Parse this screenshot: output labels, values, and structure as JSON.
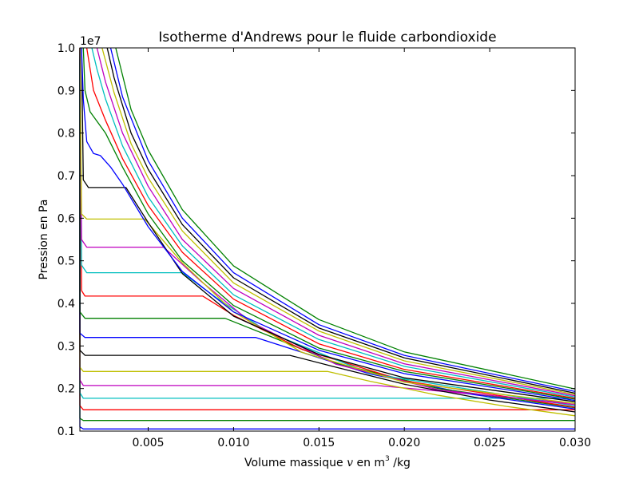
{
  "chart_data": {
    "type": "line",
    "title": "Isotherme d'Andrews pour le fluide carbondioxide",
    "xlabel": {
      "prefix": "Volume massique ",
      "var": "v",
      "mid": " en m",
      "sup": "3",
      "suffix": " /kg"
    },
    "ylabel": "Pression en Pa",
    "y_offset_label": "1e7",
    "xlim": [
      0.001,
      0.03
    ],
    "ylim": [
      1000000,
      10000000
    ],
    "x_ticks": [
      {
        "value": 0.005,
        "label": "0.005"
      },
      {
        "value": 0.01,
        "label": "0.010"
      },
      {
        "value": 0.015,
        "label": "0.015"
      },
      {
        "value": 0.02,
        "label": "0.020"
      },
      {
        "value": 0.025,
        "label": "0.025"
      },
      {
        "value": 0.03,
        "label": "0.030"
      }
    ],
    "y_ticks": [
      {
        "value": 1000000,
        "label": "0.1"
      },
      {
        "value": 2000000,
        "label": "0.2"
      },
      {
        "value": 3000000,
        "label": "0.3"
      },
      {
        "value": 4000000,
        "label": "0.4"
      },
      {
        "value": 5000000,
        "label": "0.5"
      },
      {
        "value": 6000000,
        "label": "0.6"
      },
      {
        "value": 7000000,
        "label": "0.7"
      },
      {
        "value": 8000000,
        "label": "0.8"
      },
      {
        "value": 9000000,
        "label": "0.9"
      },
      {
        "value": 10000000,
        "label": "1.0"
      }
    ],
    "grid": false,
    "legend": "none",
    "series": [
      {
        "color": "#0000ff",
        "values": [
          [
            0.001,
            10000000
          ],
          [
            0.001,
            1100000
          ],
          [
            0.0012,
            1050000
          ],
          [
            0.03,
            1050000
          ]
        ]
      },
      {
        "color": "#008000",
        "values": [
          [
            0.001,
            10000000
          ],
          [
            0.001,
            1300000
          ],
          [
            0.0012,
            1250000
          ],
          [
            0.03,
            1250000
          ]
        ]
      },
      {
        "color": "#ff0000",
        "values": [
          [
            0.001,
            10000000
          ],
          [
            0.001,
            1600000
          ],
          [
            0.0012,
            1500000
          ],
          [
            0.03,
            1500000
          ]
        ]
      },
      {
        "color": "#00bfbf",
        "values": [
          [
            0.001,
            10000000
          ],
          [
            0.001,
            1900000
          ],
          [
            0.0012,
            1770000
          ],
          [
            0.03,
            1770000
          ]
        ]
      },
      {
        "color": "#bf00bf",
        "values": [
          [
            0.001,
            10000000
          ],
          [
            0.001,
            2200000
          ],
          [
            0.0012,
            2070000
          ],
          [
            0.0184,
            2070000
          ],
          [
            0.03,
            1650000
          ]
        ]
      },
      {
        "color": "#bfbf00",
        "values": [
          [
            0.001,
            10000000
          ],
          [
            0.001,
            2500000
          ],
          [
            0.0012,
            2400000
          ],
          [
            0.0155,
            2400000
          ],
          [
            0.018,
            2170000
          ],
          [
            0.022,
            1840000
          ],
          [
            0.026,
            1580000
          ],
          [
            0.03,
            1360000
          ]
        ]
      },
      {
        "color": "#000000",
        "values": [
          [
            0.001,
            10000000
          ],
          [
            0.001,
            2900000
          ],
          [
            0.0013,
            2780000
          ],
          [
            0.0133,
            2780000
          ],
          [
            0.016,
            2500000
          ],
          [
            0.02,
            2100000
          ],
          [
            0.025,
            1730000
          ],
          [
            0.03,
            1450000
          ]
        ]
      },
      {
        "color": "#0000ff",
        "values": [
          [
            0.001,
            10000000
          ],
          [
            0.001,
            3300000
          ],
          [
            0.0013,
            3200000
          ],
          [
            0.0113,
            3200000
          ],
          [
            0.014,
            2850000
          ],
          [
            0.018,
            2340000
          ],
          [
            0.024,
            1860000
          ],
          [
            0.03,
            1520000
          ]
        ]
      },
      {
        "color": "#008000",
        "values": [
          [
            0.001,
            10000000
          ],
          [
            0.001,
            3800000
          ],
          [
            0.0013,
            3650000
          ],
          [
            0.0095,
            3650000
          ],
          [
            0.012,
            3250000
          ],
          [
            0.016,
            2600000
          ],
          [
            0.022,
            2000000
          ],
          [
            0.03,
            1550000
          ]
        ]
      },
      {
        "color": "#ff0000",
        "values": [
          [
            0.001,
            10000000
          ],
          [
            0.0011,
            4300000
          ],
          [
            0.0013,
            4170000
          ],
          [
            0.0082,
            4170000
          ],
          [
            0.01,
            3720000
          ],
          [
            0.014,
            2920000
          ],
          [
            0.02,
            2180000
          ],
          [
            0.03,
            1560000
          ]
        ]
      },
      {
        "color": "#00bfbf",
        "values": [
          [
            0.001,
            10000000
          ],
          [
            0.0011,
            4900000
          ],
          [
            0.0014,
            4720000
          ],
          [
            0.007,
            4720000
          ],
          [
            0.009,
            4130000
          ],
          [
            0.012,
            3330000
          ],
          [
            0.018,
            2350000
          ],
          [
            0.03,
            1590000
          ]
        ]
      },
      {
        "color": "#bf00bf",
        "values": [
          [
            0.001,
            10000000
          ],
          [
            0.0011,
            5500000
          ],
          [
            0.0014,
            5320000
          ],
          [
            0.0059,
            5320000
          ],
          [
            0.008,
            4550000
          ],
          [
            0.011,
            3560000
          ],
          [
            0.016,
            2570000
          ],
          [
            0.022,
            1970000
          ],
          [
            0.03,
            1620000
          ]
        ]
      },
      {
        "color": "#bfbf00",
        "values": [
          [
            0.001,
            10000000
          ],
          [
            0.0011,
            6100000
          ],
          [
            0.0014,
            5980000
          ],
          [
            0.0048,
            5980000
          ],
          [
            0.007,
            4950000
          ],
          [
            0.01,
            3800000
          ],
          [
            0.014,
            2850000
          ],
          [
            0.02,
            2150000
          ],
          [
            0.03,
            1650000
          ]
        ]
      },
      {
        "color": "#000000",
        "values": [
          [
            0.0011,
            10000000
          ],
          [
            0.0012,
            6900000
          ],
          [
            0.0015,
            6720000
          ],
          [
            0.0037,
            6720000
          ],
          [
            0.005,
            5900000
          ],
          [
            0.007,
            4700000
          ],
          [
            0.01,
            3700000
          ],
          [
            0.015,
            2800000
          ],
          [
            0.02,
            2250000
          ],
          [
            0.03,
            1690000
          ]
        ]
      },
      {
        "color": "#0000ff",
        "values": [
          [
            0.0011,
            10000000
          ],
          [
            0.0012,
            8800000
          ],
          [
            0.0014,
            7800000
          ],
          [
            0.0018,
            7520000
          ],
          [
            0.0022,
            7470000
          ],
          [
            0.0028,
            7200000
          ],
          [
            0.0035,
            6800000
          ],
          [
            0.005,
            5800000
          ],
          [
            0.007,
            4750000
          ],
          [
            0.01,
            3800000
          ],
          [
            0.015,
            2900000
          ],
          [
            0.02,
            2350000
          ],
          [
            0.03,
            1720000
          ]
        ]
      },
      {
        "color": "#008000",
        "values": [
          [
            0.0012,
            10000000
          ],
          [
            0.0013,
            9000000
          ],
          [
            0.0016,
            8500000
          ],
          [
            0.0025,
            8000000
          ],
          [
            0.0035,
            7200000
          ],
          [
            0.005,
            6100000
          ],
          [
            0.007,
            5000000
          ],
          [
            0.01,
            3950000
          ],
          [
            0.015,
            2950000
          ],
          [
            0.02,
            2400000
          ],
          [
            0.03,
            1750000
          ]
        ]
      },
      {
        "color": "#ff0000",
        "values": [
          [
            0.0014,
            10000000
          ],
          [
            0.0018,
            9000000
          ],
          [
            0.0025,
            8300000
          ],
          [
            0.0035,
            7400000
          ],
          [
            0.005,
            6300000
          ],
          [
            0.007,
            5200000
          ],
          [
            0.01,
            4100000
          ],
          [
            0.015,
            3050000
          ],
          [
            0.02,
            2450000
          ],
          [
            0.03,
            1770000
          ]
        ]
      },
      {
        "color": "#00bfbf",
        "values": [
          [
            0.0017,
            10000000
          ],
          [
            0.002,
            9500000
          ],
          [
            0.0025,
            8800000
          ],
          [
            0.0035,
            7700000
          ],
          [
            0.005,
            6500000
          ],
          [
            0.007,
            5350000
          ],
          [
            0.01,
            4200000
          ],
          [
            0.015,
            3150000
          ],
          [
            0.02,
            2520000
          ],
          [
            0.03,
            1800000
          ]
        ]
      },
      {
        "color": "#bf00bf",
        "values": [
          [
            0.002,
            10000000
          ],
          [
            0.0025,
            9200000
          ],
          [
            0.0035,
            8000000
          ],
          [
            0.005,
            6750000
          ],
          [
            0.007,
            5500000
          ],
          [
            0.01,
            4350000
          ],
          [
            0.015,
            3250000
          ],
          [
            0.02,
            2580000
          ],
          [
            0.03,
            1830000
          ]
        ]
      },
      {
        "color": "#bfbf00",
        "values": [
          [
            0.0023,
            10000000
          ],
          [
            0.003,
            8950000
          ],
          [
            0.004,
            7750000
          ],
          [
            0.005,
            6950000
          ],
          [
            0.007,
            5700000
          ],
          [
            0.01,
            4480000
          ],
          [
            0.015,
            3350000
          ],
          [
            0.02,
            2650000
          ],
          [
            0.03,
            1860000
          ]
        ]
      },
      {
        "color": "#000000",
        "values": [
          [
            0.0026,
            10000000
          ],
          [
            0.003,
            9300000
          ],
          [
            0.004,
            8000000
          ],
          [
            0.005,
            7150000
          ],
          [
            0.007,
            5850000
          ],
          [
            0.01,
            4600000
          ],
          [
            0.015,
            3420000
          ],
          [
            0.02,
            2720000
          ],
          [
            0.03,
            1890000
          ]
        ]
      },
      {
        "color": "#0000ff",
        "values": [
          [
            0.0028,
            10000000
          ],
          [
            0.0035,
            8850000
          ],
          [
            0.005,
            7350000
          ],
          [
            0.007,
            6000000
          ],
          [
            0.01,
            4720000
          ],
          [
            0.015,
            3500000
          ],
          [
            0.02,
            2780000
          ],
          [
            0.03,
            1930000
          ]
        ]
      },
      {
        "color": "#008000",
        "values": [
          [
            0.0031,
            10000000
          ],
          [
            0.004,
            8550000
          ],
          [
            0.005,
            7600000
          ],
          [
            0.007,
            6200000
          ],
          [
            0.01,
            4880000
          ],
          [
            0.015,
            3620000
          ],
          [
            0.02,
            2860000
          ],
          [
            0.03,
            1990000
          ]
        ]
      }
    ]
  }
}
